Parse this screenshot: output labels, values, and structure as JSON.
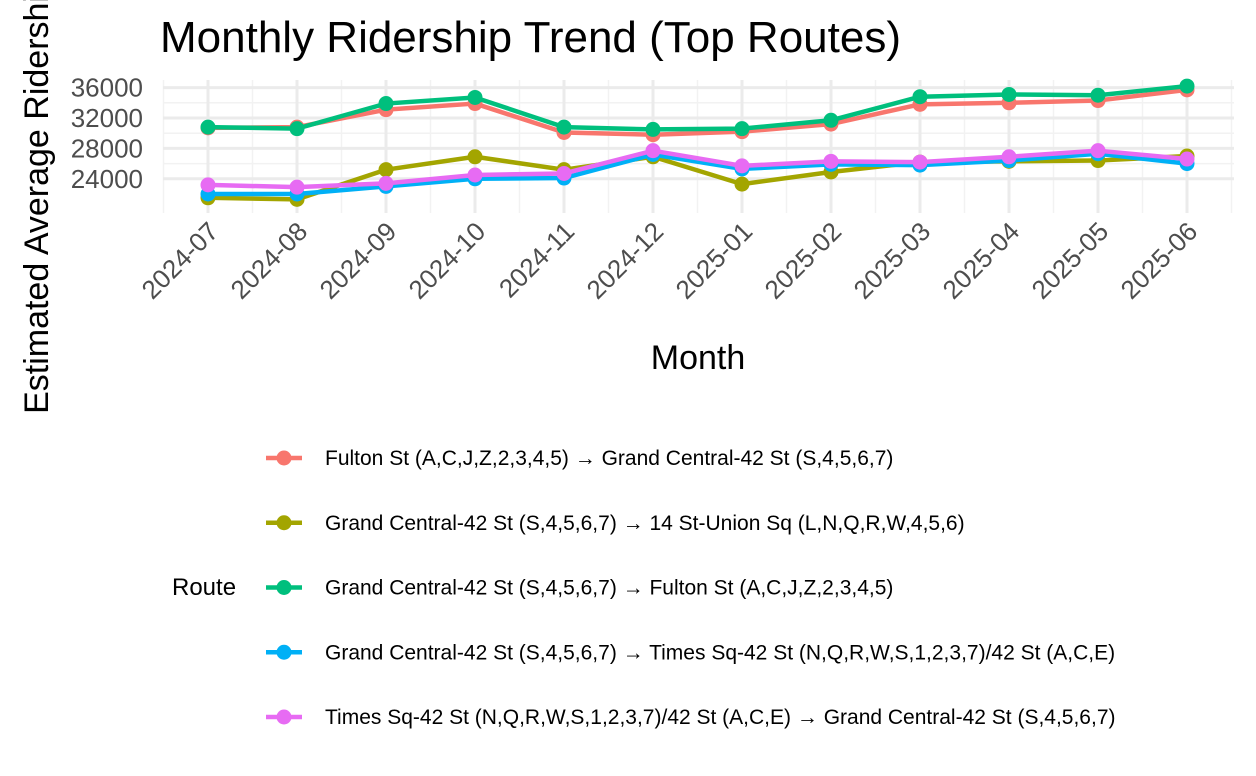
{
  "chart_data": {
    "type": "line",
    "title": "Monthly Ridership Trend (Top Routes)",
    "xlabel": "Month",
    "ylabel": "Estimated Average Ridership",
    "categories": [
      "2024-07",
      "2024-08",
      "2024-09",
      "2024-10",
      "2024-11",
      "2024-12",
      "2025-01",
      "2025-02",
      "2025-03",
      "2025-04",
      "2025-05",
      "2025-06"
    ],
    "ylim": [
      19500,
      37000
    ],
    "yticks": [
      24000,
      28000,
      32000,
      36000
    ],
    "ytick_labels": [
      "24000",
      "28000",
      "32000",
      "36000"
    ],
    "grid": true,
    "legend_title": "Route",
    "legend_position": "bottom",
    "series": [
      {
        "name": "Fulton St (A,C,J,Z,2,3,4,5) → Grand Central-42 St (S,4,5,6,7)",
        "color": "#F8766D",
        "values": [
          30700,
          30800,
          33100,
          33900,
          30100,
          29800,
          30200,
          31200,
          33800,
          34000,
          34300,
          35700
        ]
      },
      {
        "name": "Grand Central-42 St (S,4,5,6,7) → 14 St-Union Sq (L,N,Q,R,W,4,5,6)",
        "color": "#A3A500",
        "values": [
          21500,
          21300,
          25200,
          26900,
          25200,
          26900,
          23300,
          24900,
          26200,
          26300,
          26400,
          27000
        ]
      },
      {
        "name": "Grand Central-42 St (S,4,5,6,7) → Fulton St (A,C,J,Z,2,3,4,5)",
        "color": "#00BF7D",
        "values": [
          30800,
          30600,
          33900,
          34700,
          30800,
          30500,
          30600,
          31700,
          34800,
          35100,
          35000,
          36200
        ]
      },
      {
        "name": "Grand Central-42 St (S,4,5,6,7) → Times Sq-42 St (N,Q,R,W,S,1,2,3,7)/42 St (A,C,E)",
        "color": "#00B0F6",
        "values": [
          22000,
          22000,
          23000,
          24000,
          24100,
          27200,
          25300,
          25900,
          25800,
          26400,
          27300,
          26000
        ]
      },
      {
        "name": "Times Sq-42 St (N,Q,R,W,S,1,2,3,7)/42 St (A,C,E) → Grand Central-42 St (S,4,5,6,7)",
        "color": "#E76BF3",
        "values": [
          23200,
          22900,
          23400,
          24500,
          24700,
          27700,
          25700,
          26300,
          26200,
          26900,
          27700,
          26600
        ]
      }
    ]
  }
}
